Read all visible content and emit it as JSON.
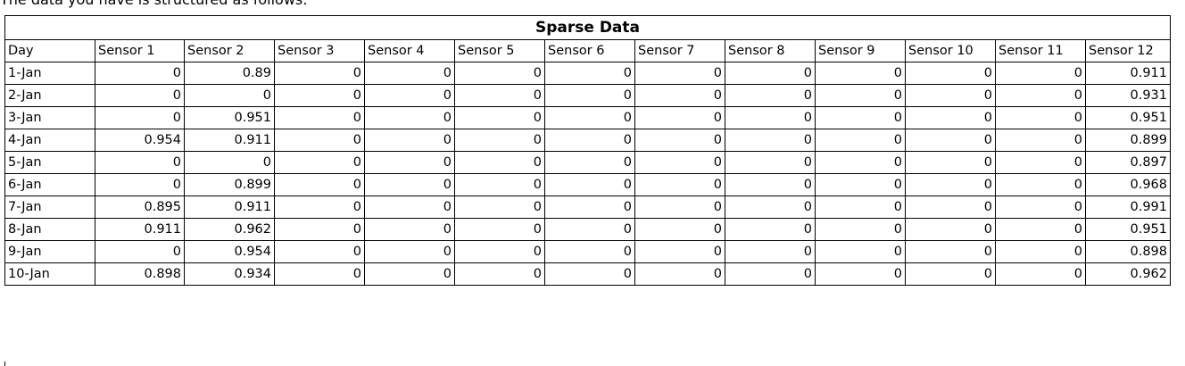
{
  "top_text": "The data you have is structured as follows:",
  "sheet": {
    "title": "Sparse Data",
    "headers": [
      "Day",
      "Sensor 1",
      "Sensor 2",
      "Sensor 3",
      "Sensor 4",
      "Sensor 5",
      "Sensor 6",
      "Sensor 7",
      "Sensor 8",
      "Sensor 9",
      "Sensor 10",
      "Sensor 11",
      "Sensor 12"
    ],
    "rows": [
      [
        "1-Jan",
        "0",
        "0.89",
        "0",
        "0",
        "0",
        "0",
        "0",
        "0",
        "0",
        "0",
        "0",
        "0.911"
      ],
      [
        "2-Jan",
        "0",
        "0",
        "0",
        "0",
        "0",
        "0",
        "0",
        "0",
        "0",
        "0",
        "0",
        "0.931"
      ],
      [
        "3-Jan",
        "0",
        "0.951",
        "0",
        "0",
        "0",
        "0",
        "0",
        "0",
        "0",
        "0",
        "0",
        "0.951"
      ],
      [
        "4-Jan",
        "0.954",
        "0.911",
        "0",
        "0",
        "0",
        "0",
        "0",
        "0",
        "0",
        "0",
        "0",
        "0.899"
      ],
      [
        "5-Jan",
        "0",
        "0",
        "0",
        "0",
        "0",
        "0",
        "0",
        "0",
        "0",
        "0",
        "0",
        "0.897"
      ],
      [
        "6-Jan",
        "0",
        "0.899",
        "0",
        "0",
        "0",
        "0",
        "0",
        "0",
        "0",
        "0",
        "0",
        "0.968"
      ],
      [
        "7-Jan",
        "0.895",
        "0.911",
        "0",
        "0",
        "0",
        "0",
        "0",
        "0",
        "0",
        "0",
        "0",
        "0.991"
      ],
      [
        "8-Jan",
        "0.911",
        "0.962",
        "0",
        "0",
        "0",
        "0",
        "0",
        "0",
        "0",
        "0",
        "0",
        "0.951"
      ],
      [
        "9-Jan",
        "0",
        "0.954",
        "0",
        "0",
        "0",
        "0",
        "0",
        "0",
        "0",
        "0",
        "0",
        "0.898"
      ],
      [
        "10-Jan",
        "0.898",
        "0.934",
        "0",
        "0",
        "0",
        "0",
        "0",
        "0",
        "0",
        "0",
        "0",
        "0.962"
      ]
    ]
  }
}
